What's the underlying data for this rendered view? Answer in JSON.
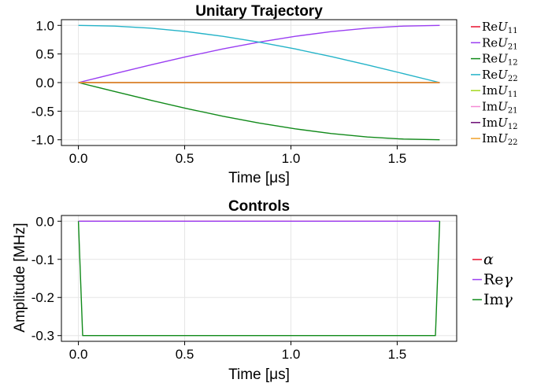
{
  "chart_data": [
    {
      "type": "line",
      "title": "Unitary Trajectory",
      "xlabel": "Time [μs]",
      "ylabel": "",
      "xlim": [
        -0.08,
        1.78
      ],
      "ylim": [
        -1.1,
        1.1
      ],
      "xticks": [
        0.0,
        0.5,
        1.0,
        1.5
      ],
      "xtick_labels": [
        "0.0",
        "0.5",
        "1.0",
        "1.5"
      ],
      "yticks": [
        1.0,
        0.5,
        0.0,
        -0.5,
        -1.0
      ],
      "ytick_labels": [
        "1.0",
        "0.5",
        "0.0",
        "-0.5",
        "-1.0"
      ],
      "grid": true,
      "legend_position": "right",
      "series": [
        {
          "name": "Re U11",
          "label": {
            "pre": "Re",
            "main": "U",
            "sub": "11"
          },
          "color": "#e8112d",
          "x": [
            0,
            1.7
          ],
          "y": [
            0,
            0
          ]
        },
        {
          "name": "Re U21",
          "label": {
            "pre": "Re",
            "main": "U",
            "sub": "21"
          },
          "color": "#9a3ef2",
          "x": [
            0,
            0.17,
            0.34,
            0.51,
            0.68,
            0.85,
            1.02,
            1.19,
            1.36,
            1.53,
            1.7
          ],
          "y": [
            0,
            0.156,
            0.309,
            0.454,
            0.588,
            0.707,
            0.809,
            0.891,
            0.951,
            0.988,
            1.0
          ]
        },
        {
          "name": "Re U12",
          "label": {
            "pre": "Re",
            "main": "U",
            "sub": "12"
          },
          "color": "#118a1a",
          "x": [
            0,
            0.17,
            0.34,
            0.51,
            0.68,
            0.85,
            1.02,
            1.19,
            1.36,
            1.53,
            1.7
          ],
          "y": [
            0,
            -0.156,
            -0.309,
            -0.454,
            -0.588,
            -0.707,
            -0.809,
            -0.891,
            -0.951,
            -0.988,
            -1.0
          ]
        },
        {
          "name": "Re U22",
          "label": {
            "pre": "Re",
            "main": "U",
            "sub": "22"
          },
          "color": "#24b3c8",
          "x": [
            0,
            0.17,
            0.34,
            0.51,
            0.68,
            0.85,
            1.02,
            1.19,
            1.36,
            1.53,
            1.7
          ],
          "y": [
            1.0,
            0.988,
            0.951,
            0.891,
            0.809,
            0.707,
            0.588,
            0.454,
            0.309,
            0.156,
            0
          ]
        },
        {
          "name": "Im U11",
          "label": {
            "pre": "Im",
            "main": "U",
            "sub": "11"
          },
          "color": "#a4d81f",
          "x": [
            0,
            1.7
          ],
          "y": [
            0,
            0
          ]
        },
        {
          "name": "Im U21",
          "label": {
            "pre": "Im",
            "main": "U",
            "sub": "21"
          },
          "color": "#f58ad4",
          "x": [
            0,
            1.7
          ],
          "y": [
            0,
            0
          ]
        },
        {
          "name": "Im U12",
          "label": {
            "pre": "Im",
            "main": "U",
            "sub": "12"
          },
          "color": "#6b0a73",
          "x": [
            0,
            1.7
          ],
          "y": [
            0,
            0
          ]
        },
        {
          "name": "Im U22",
          "label": {
            "pre": "Im",
            "main": "U",
            "sub": "22"
          },
          "color": "#f0a22b",
          "x": [
            0,
            1.7
          ],
          "y": [
            0,
            0
          ]
        }
      ]
    },
    {
      "type": "line",
      "title": "Controls",
      "xlabel": "Time [μs]",
      "ylabel": "Amplitude [MHz]",
      "xlim": [
        -0.08,
        1.78
      ],
      "ylim": [
        -0.315,
        0.015
      ],
      "xticks": [
        0.0,
        0.5,
        1.0,
        1.5
      ],
      "xtick_labels": [
        "0.0",
        "0.5",
        "1.0",
        "1.5"
      ],
      "yticks": [
        0.0,
        -0.1,
        -0.2,
        -0.3
      ],
      "ytick_labels": [
        "0.0",
        "-0.1",
        "-0.2",
        "-0.3"
      ],
      "grid": true,
      "legend_position": "right",
      "series": [
        {
          "name": "α",
          "label": {
            "pre": "",
            "main": "α",
            "sub": ""
          },
          "color": "#e8112d",
          "x": [
            0,
            1.7
          ],
          "y": [
            0,
            0
          ]
        },
        {
          "name": "Reγ",
          "label": {
            "pre": "Re",
            "main": "γ",
            "sub": ""
          },
          "color": "#9a3ef2",
          "x": [
            0,
            1.7
          ],
          "y": [
            0,
            0
          ]
        },
        {
          "name": "Imγ",
          "label": {
            "pre": "Im",
            "main": "γ",
            "sub": ""
          },
          "color": "#118a1a",
          "x": [
            0,
            0.02,
            1.68,
            1.7
          ],
          "y": [
            0,
            -0.3,
            -0.3,
            0
          ]
        }
      ]
    }
  ]
}
